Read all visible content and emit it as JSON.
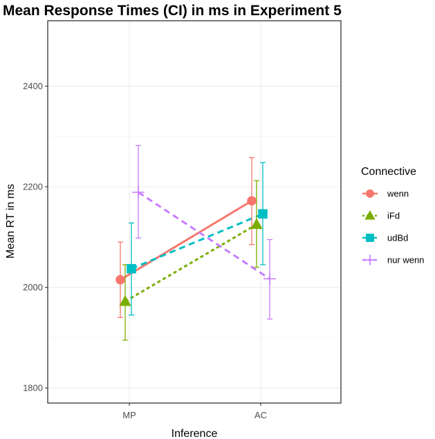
{
  "chart_data": {
    "type": "line",
    "title": "Mean Response Times (CI) in ms in Experiment 5",
    "xlabel": "Inference",
    "ylabel": "Mean RT in ms",
    "categories": [
      "MP",
      "AC"
    ],
    "ylim": [
      1770,
      2530
    ],
    "yticks": [
      1800,
      2000,
      2200,
      2400
    ],
    "grid": true,
    "legend": {
      "title": "Connective",
      "position": "right"
    },
    "series": [
      {
        "name": "wenn",
        "color": "#F8766D",
        "marker": "circle",
        "linestyle": "solid",
        "values": [
          2015,
          2172
        ],
        "ci_low": [
          1940,
          2085
        ],
        "ci_high": [
          2090,
          2258
        ]
      },
      {
        "name": "iFd",
        "color": "#7CAE00",
        "marker": "triangle",
        "linestyle": "dotted",
        "values": [
          1972,
          2125
        ],
        "ci_low": [
          1895,
          2040
        ],
        "ci_high": [
          2045,
          2212
        ]
      },
      {
        "name": "udBd",
        "color": "#00BFC4",
        "marker": "square",
        "linestyle": "dashed",
        "values": [
          2037,
          2146
        ],
        "ci_low": [
          1945,
          2045
        ],
        "ci_high": [
          2128,
          2248
        ]
      },
      {
        "name": "nur wenn",
        "color": "#C77CFF",
        "marker": "plus",
        "linestyle": "dashed",
        "values": [
          2189,
          2017
        ],
        "ci_low": [
          2098,
          1937
        ],
        "ci_high": [
          2282,
          2095
        ]
      }
    ]
  }
}
